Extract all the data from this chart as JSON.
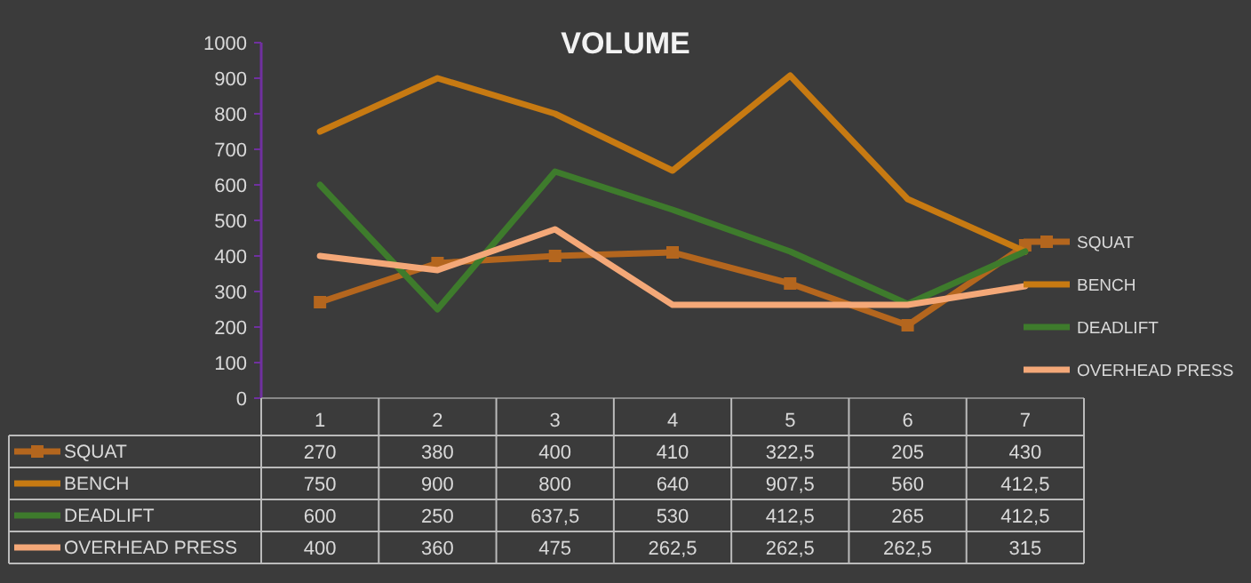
{
  "chart_data": {
    "type": "line",
    "title": "VOLUME",
    "categories": [
      "1",
      "2",
      "3",
      "4",
      "5",
      "6",
      "7"
    ],
    "ylim": [
      0,
      1000
    ],
    "yticks": [
      0,
      100,
      200,
      300,
      400,
      500,
      600,
      700,
      800,
      900,
      1000
    ],
    "grid": false,
    "legend": "right",
    "line_style": "solid",
    "series": [
      {
        "name": "SQUAT",
        "color": "#b4661e",
        "marker": "square",
        "values": [
          270,
          380,
          400,
          410,
          322.5,
          205,
          430
        ],
        "value_labels": [
          "270",
          "380",
          "400",
          "410",
          "322,5",
          "205",
          "430"
        ]
      },
      {
        "name": "BENCH",
        "color": "#c77a12",
        "values": [
          750,
          900,
          800,
          640,
          907.5,
          560,
          412.5
        ],
        "value_labels": [
          "750",
          "900",
          "800",
          "640",
          "907,5",
          "560",
          "412,5"
        ]
      },
      {
        "name": "DEADLIFT",
        "color": "#3e7b2c",
        "values": [
          600,
          250,
          637.5,
          530,
          412.5,
          265,
          412.5
        ],
        "value_labels": [
          "600",
          "250",
          "637,5",
          "530",
          "412,5",
          "265",
          "412,5"
        ]
      },
      {
        "name": "OVERHEAD PRESS",
        "color": "#f4a878",
        "values": [
          400,
          360,
          475,
          262.5,
          262.5,
          262.5,
          315
        ],
        "value_labels": [
          "400",
          "360",
          "475",
          "262,5",
          "262,5",
          "262,5",
          "315"
        ]
      }
    ]
  }
}
